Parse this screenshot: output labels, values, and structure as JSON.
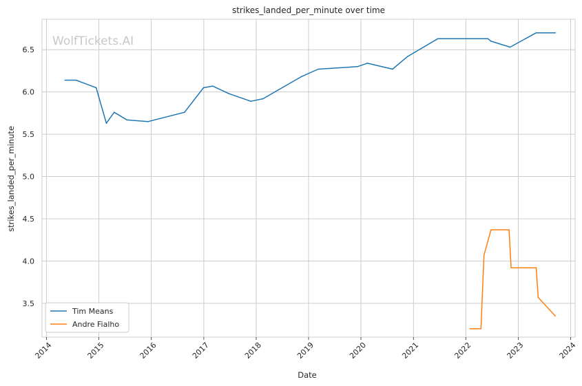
{
  "chart_data": {
    "type": "line",
    "title": "strikes_landed_per_minute over time",
    "xlabel": "Date",
    "ylabel": "strikes_landed_per_minute",
    "watermark": "WolfTickets.AI",
    "xlim": [
      "2013-12-01",
      "2024-02-01"
    ],
    "ylim": [
      3.1,
      6.86
    ],
    "x_ticks": [
      "2014-01-01",
      "2015-01-01",
      "2016-01-01",
      "2017-01-01",
      "2018-01-01",
      "2019-01-01",
      "2020-01-01",
      "2021-01-01",
      "2022-01-01",
      "2023-01-01",
      "2024-01-01"
    ],
    "x_tick_labels": [
      "2014",
      "2015",
      "2016",
      "2017",
      "2018",
      "2019",
      "2020",
      "2021",
      "2022",
      "2023",
      "2024"
    ],
    "y_ticks": [
      3.5,
      4.0,
      4.5,
      5.0,
      5.5,
      6.0,
      6.5
    ],
    "y_tick_labels": [
      "3.5",
      "4.0",
      "4.5",
      "5.0",
      "5.5",
      "6.0",
      "6.5"
    ],
    "grid": true,
    "legend_position": "lower-left",
    "series": [
      {
        "name": "Tim Means",
        "color": "#1f77b4",
        "points": [
          {
            "x": "2014-05-10",
            "y": 6.14
          },
          {
            "x": "2014-07-26",
            "y": 6.14
          },
          {
            "x": "2014-12-13",
            "y": 6.05
          },
          {
            "x": "2015-02-22",
            "y": 5.63
          },
          {
            "x": "2015-04-18",
            "y": 5.76
          },
          {
            "x": "2015-07-15",
            "y": 5.67
          },
          {
            "x": "2015-12-10",
            "y": 5.65
          },
          {
            "x": "2016-08-20",
            "y": 5.76
          },
          {
            "x": "2016-12-30",
            "y": 6.05
          },
          {
            "x": "2017-03-04",
            "y": 6.07
          },
          {
            "x": "2017-06-25",
            "y": 5.98
          },
          {
            "x": "2017-11-25",
            "y": 5.89
          },
          {
            "x": "2018-02-18",
            "y": 5.92
          },
          {
            "x": "2018-11-10",
            "y": 6.18
          },
          {
            "x": "2019-03-09",
            "y": 6.27
          },
          {
            "x": "2019-12-07",
            "y": 6.3
          },
          {
            "x": "2020-02-15",
            "y": 6.34
          },
          {
            "x": "2020-08-08",
            "y": 6.27
          },
          {
            "x": "2020-11-21",
            "y": 6.42
          },
          {
            "x": "2021-06-19",
            "y": 6.63
          },
          {
            "x": "2022-06-04",
            "y": 6.63
          },
          {
            "x": "2022-06-25",
            "y": 6.6
          },
          {
            "x": "2022-11-05",
            "y": 6.53
          },
          {
            "x": "2023-05-06",
            "y": 6.7
          },
          {
            "x": "2023-09-16",
            "y": 6.7
          }
        ]
      },
      {
        "name": "Andre Fialho",
        "color": "#ff7f0e",
        "points": [
          {
            "x": "2022-01-29",
            "y": 3.2
          },
          {
            "x": "2022-04-16",
            "y": 3.2
          },
          {
            "x": "2022-05-07",
            "y": 4.07
          },
          {
            "x": "2022-06-25",
            "y": 4.37
          },
          {
            "x": "2022-10-29",
            "y": 4.37
          },
          {
            "x": "2022-11-12",
            "y": 3.92
          },
          {
            "x": "2023-05-06",
            "y": 3.92
          },
          {
            "x": "2023-05-20",
            "y": 3.57
          },
          {
            "x": "2023-09-16",
            "y": 3.35
          }
        ]
      }
    ]
  }
}
